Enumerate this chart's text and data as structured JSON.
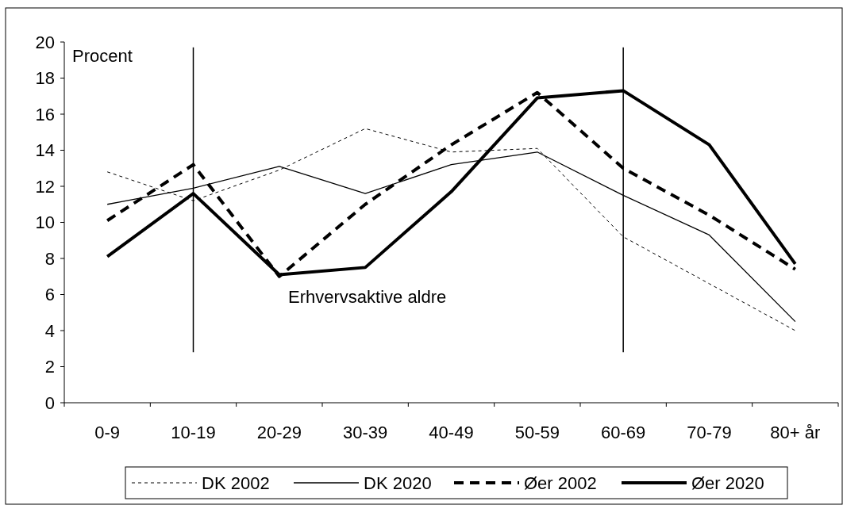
{
  "chart_data": {
    "type": "line",
    "ylabel": "Procent",
    "categories": [
      "0-9",
      "10-19",
      "20-29",
      "30-39",
      "40-49",
      "50-59",
      "60-69",
      "70-79",
      "80+ år"
    ],
    "series": [
      {
        "name": "DK 2002",
        "color": "#000000",
        "line_style": "dotted",
        "values": [
          12.8,
          11.2,
          12.9,
          15.2,
          13.9,
          14.1,
          9.2,
          6.6,
          4.0
        ]
      },
      {
        "name": "DK 2020",
        "color": "#000000",
        "line_style": "solid",
        "values": [
          11.0,
          11.9,
          13.1,
          11.6,
          13.2,
          13.9,
          11.5,
          9.3,
          4.5
        ]
      },
      {
        "name": "Øer 2002",
        "color": "#000000",
        "line_style": "dashed",
        "values": [
          10.1,
          13.2,
          7.0,
          11.0,
          14.3,
          17.2,
          13.0,
          10.4,
          7.4
        ]
      },
      {
        "name": "Øer 2020",
        "color": "#000000",
        "line_style": "solid",
        "values": [
          8.1,
          11.6,
          7.1,
          7.5,
          11.7,
          16.9,
          17.3,
          14.3,
          7.7
        ]
      }
    ],
    "ylim": [
      0,
      20
    ],
    "yticks": [
      0,
      2,
      4,
      6,
      8,
      10,
      12,
      14,
      16,
      18,
      20
    ],
    "grid": false,
    "legend": "bottom",
    "ref_lines": [
      {
        "axis": "x",
        "value": "10-19",
        "color": "#000000"
      },
      {
        "axis": "x",
        "value": "60-69",
        "color": "#000000"
      }
    ],
    "annotations": [
      "Erhvervsaktive aldre"
    ]
  }
}
